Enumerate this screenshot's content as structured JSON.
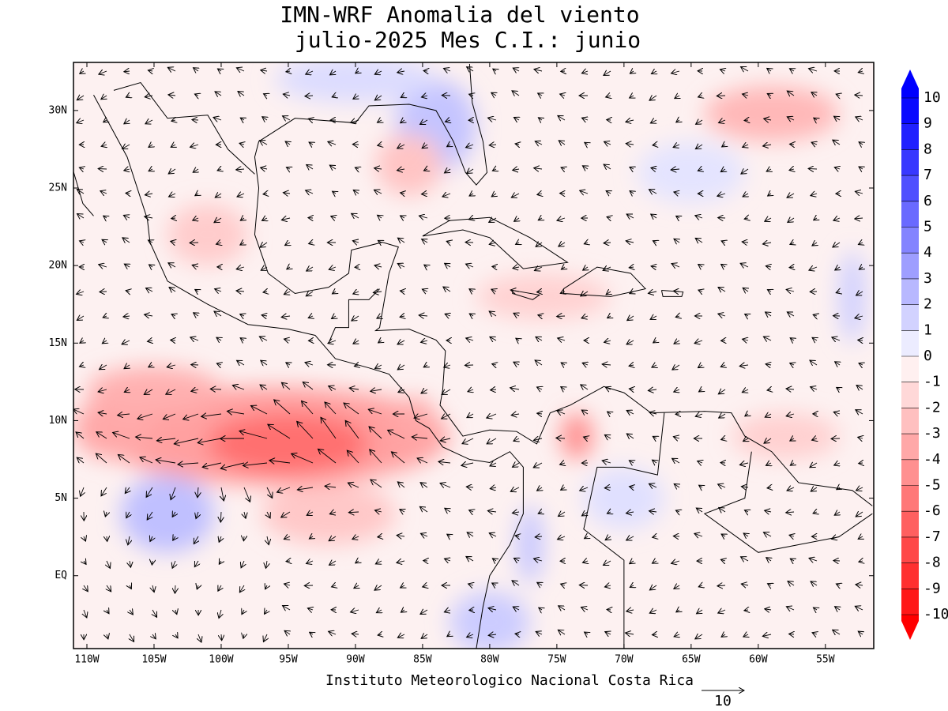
{
  "header": {
    "title": "IMN-WRF Anomalia del viento",
    "subtitle": "julio-2025 Mes C.I.: junio"
  },
  "map": {
    "lon_ticks": [
      {
        "value": -110,
        "label": "110W"
      },
      {
        "value": -105,
        "label": "105W"
      },
      {
        "value": -100,
        "label": "100W"
      },
      {
        "value": -95,
        "label": "95W"
      },
      {
        "value": -90,
        "label": "90W"
      },
      {
        "value": -85,
        "label": "85W"
      },
      {
        "value": -80,
        "label": "80W"
      },
      {
        "value": -75,
        "label": "75W"
      },
      {
        "value": -70,
        "label": "70W"
      },
      {
        "value": -65,
        "label": "65W"
      },
      {
        "value": -60,
        "label": "60W"
      },
      {
        "value": -55,
        "label": "55W"
      }
    ],
    "lat_ticks": [
      {
        "value": 0,
        "label": "EQ"
      },
      {
        "value": 5,
        "label": "5N"
      },
      {
        "value": 10,
        "label": "10N"
      },
      {
        "value": 15,
        "label": "15N"
      },
      {
        "value": 20,
        "label": "20N"
      },
      {
        "value": 25,
        "label": "25N"
      },
      {
        "value": 30,
        "label": "30N"
      }
    ],
    "lonlim": [
      -111,
      -51.4
    ],
    "latlim": [
      -4.7,
      33.1
    ]
  },
  "colorbar": {
    "levels": [
      10,
      9,
      8,
      7,
      6,
      5,
      4,
      3,
      2,
      1,
      0,
      -1,
      -2,
      -3,
      -4,
      -5,
      -6,
      -7,
      -8,
      -9,
      -10
    ],
    "colors": [
      "#0000ff",
      "#0a0aff",
      "#2020ff",
      "#3838ff",
      "#5050ff",
      "#6a6aff",
      "#8484ff",
      "#9e9eff",
      "#b8b8ff",
      "#d2d2ff",
      "#ececff",
      "#fff0f0",
      "#ffd8d8",
      "#ffc0c0",
      "#ffa8a8",
      "#ff9090",
      "#ff7878",
      "#ff6060",
      "#ff4848",
      "#ff3030",
      "#ff1818",
      "#ff0000"
    ]
  },
  "footer": {
    "credit": "Instituto Meteorologico Nacional Costa Rica",
    "reference_vector": "10"
  }
}
